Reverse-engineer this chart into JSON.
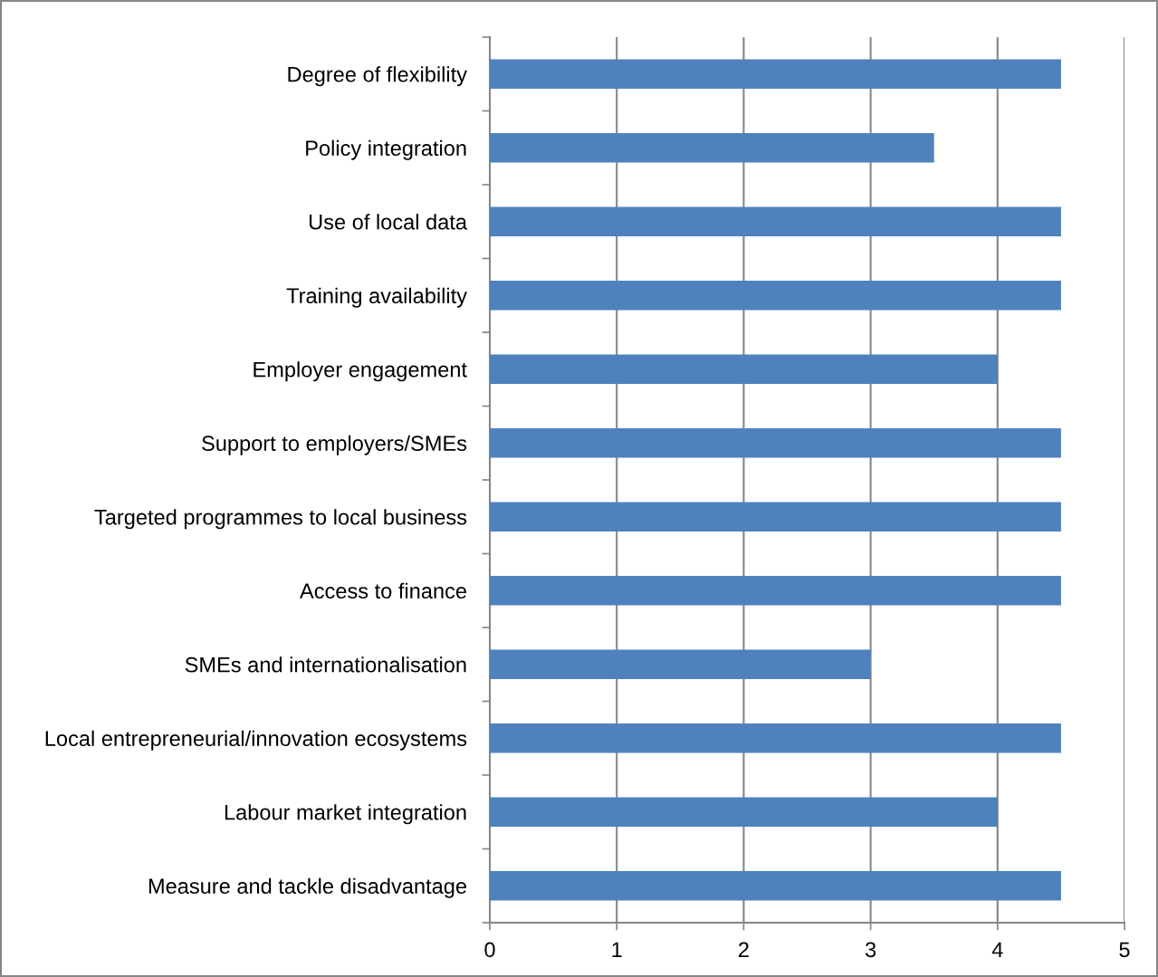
{
  "chart_data": {
    "type": "bar",
    "orientation": "horizontal",
    "categories": [
      "Degree of flexibility",
      "Policy integration",
      "Use of local data",
      "Training availability",
      "Employer engagement",
      "Support to employers/SMEs",
      "Targeted programmes to local business",
      "Access to finance",
      "SMEs and internationalisation",
      "Local entrepreneurial/innovation ecosystems",
      "Labour market integration",
      "Measure and tackle disadvantage"
    ],
    "values": [
      4.5,
      3.5,
      4.5,
      4.5,
      4,
      4.5,
      4.5,
      4.5,
      3,
      4.5,
      4,
      4.5
    ],
    "color": "#4f81bd",
    "xlim": [
      0,
      5
    ],
    "xticks": [
      0,
      1,
      2,
      3,
      4,
      5
    ],
    "grid": "x"
  }
}
